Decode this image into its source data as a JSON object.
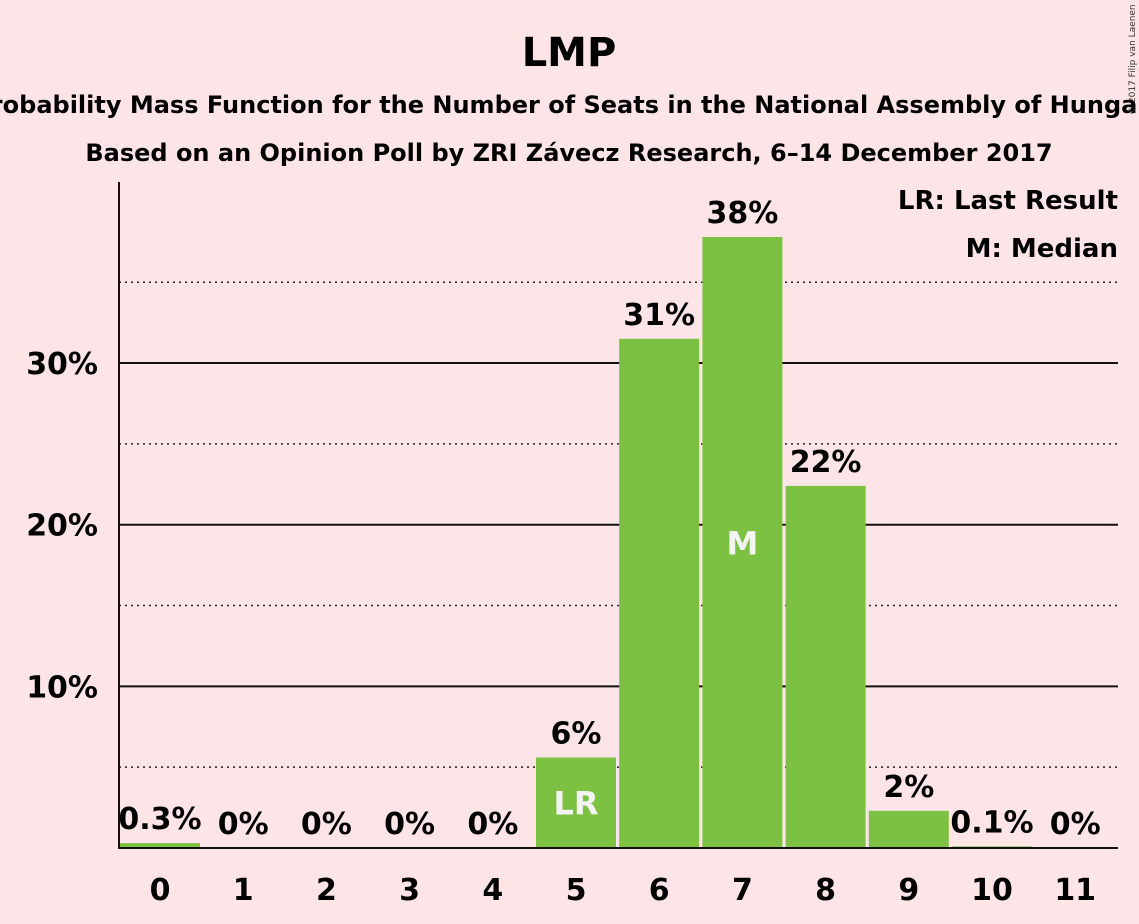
{
  "chart_data": {
    "type": "bar",
    "title": "LMP",
    "subtitle": "Probability Mass Function for the Number of Seats in the National Assembly of Hungary",
    "subtitle2": "Based on an Opinion Poll by ZRI Závecz Research, 6–14 December 2017",
    "copyright": "© 2017 Filip van Laenen",
    "categories": [
      "0",
      "1",
      "2",
      "3",
      "4",
      "5",
      "6",
      "7",
      "8",
      "9",
      "10",
      "11"
    ],
    "values": [
      0.3,
      0,
      0,
      0,
      0,
      5.6,
      31.5,
      37.8,
      22.4,
      2.3,
      0.1,
      0
    ],
    "data_labels": [
      "0.3%",
      "0%",
      "0%",
      "0%",
      "0%",
      "6%",
      "31%",
      "38%",
      "22%",
      "2%",
      "0.1%",
      "0%"
    ],
    "bar_markers": [
      {
        "category": "5",
        "text": "LR"
      },
      {
        "category": "7",
        "text": "M"
      }
    ],
    "ylim": [
      0,
      41.2
    ],
    "yticks": [
      {
        "value": 10,
        "label": "10%"
      },
      {
        "value": 20,
        "label": "20%"
      },
      {
        "value": 30,
        "label": "30%"
      }
    ],
    "dotted_gridlines": [
      5,
      15,
      25,
      35
    ],
    "grid": true,
    "legend": {
      "placement": "top-right",
      "entries": [
        "LR: Last Result",
        "M: Median"
      ]
    },
    "colors": {
      "background": "#fce4e7",
      "bar": "#7dc142",
      "text": "#111111",
      "inbar_text": "#f4f4f4"
    }
  }
}
